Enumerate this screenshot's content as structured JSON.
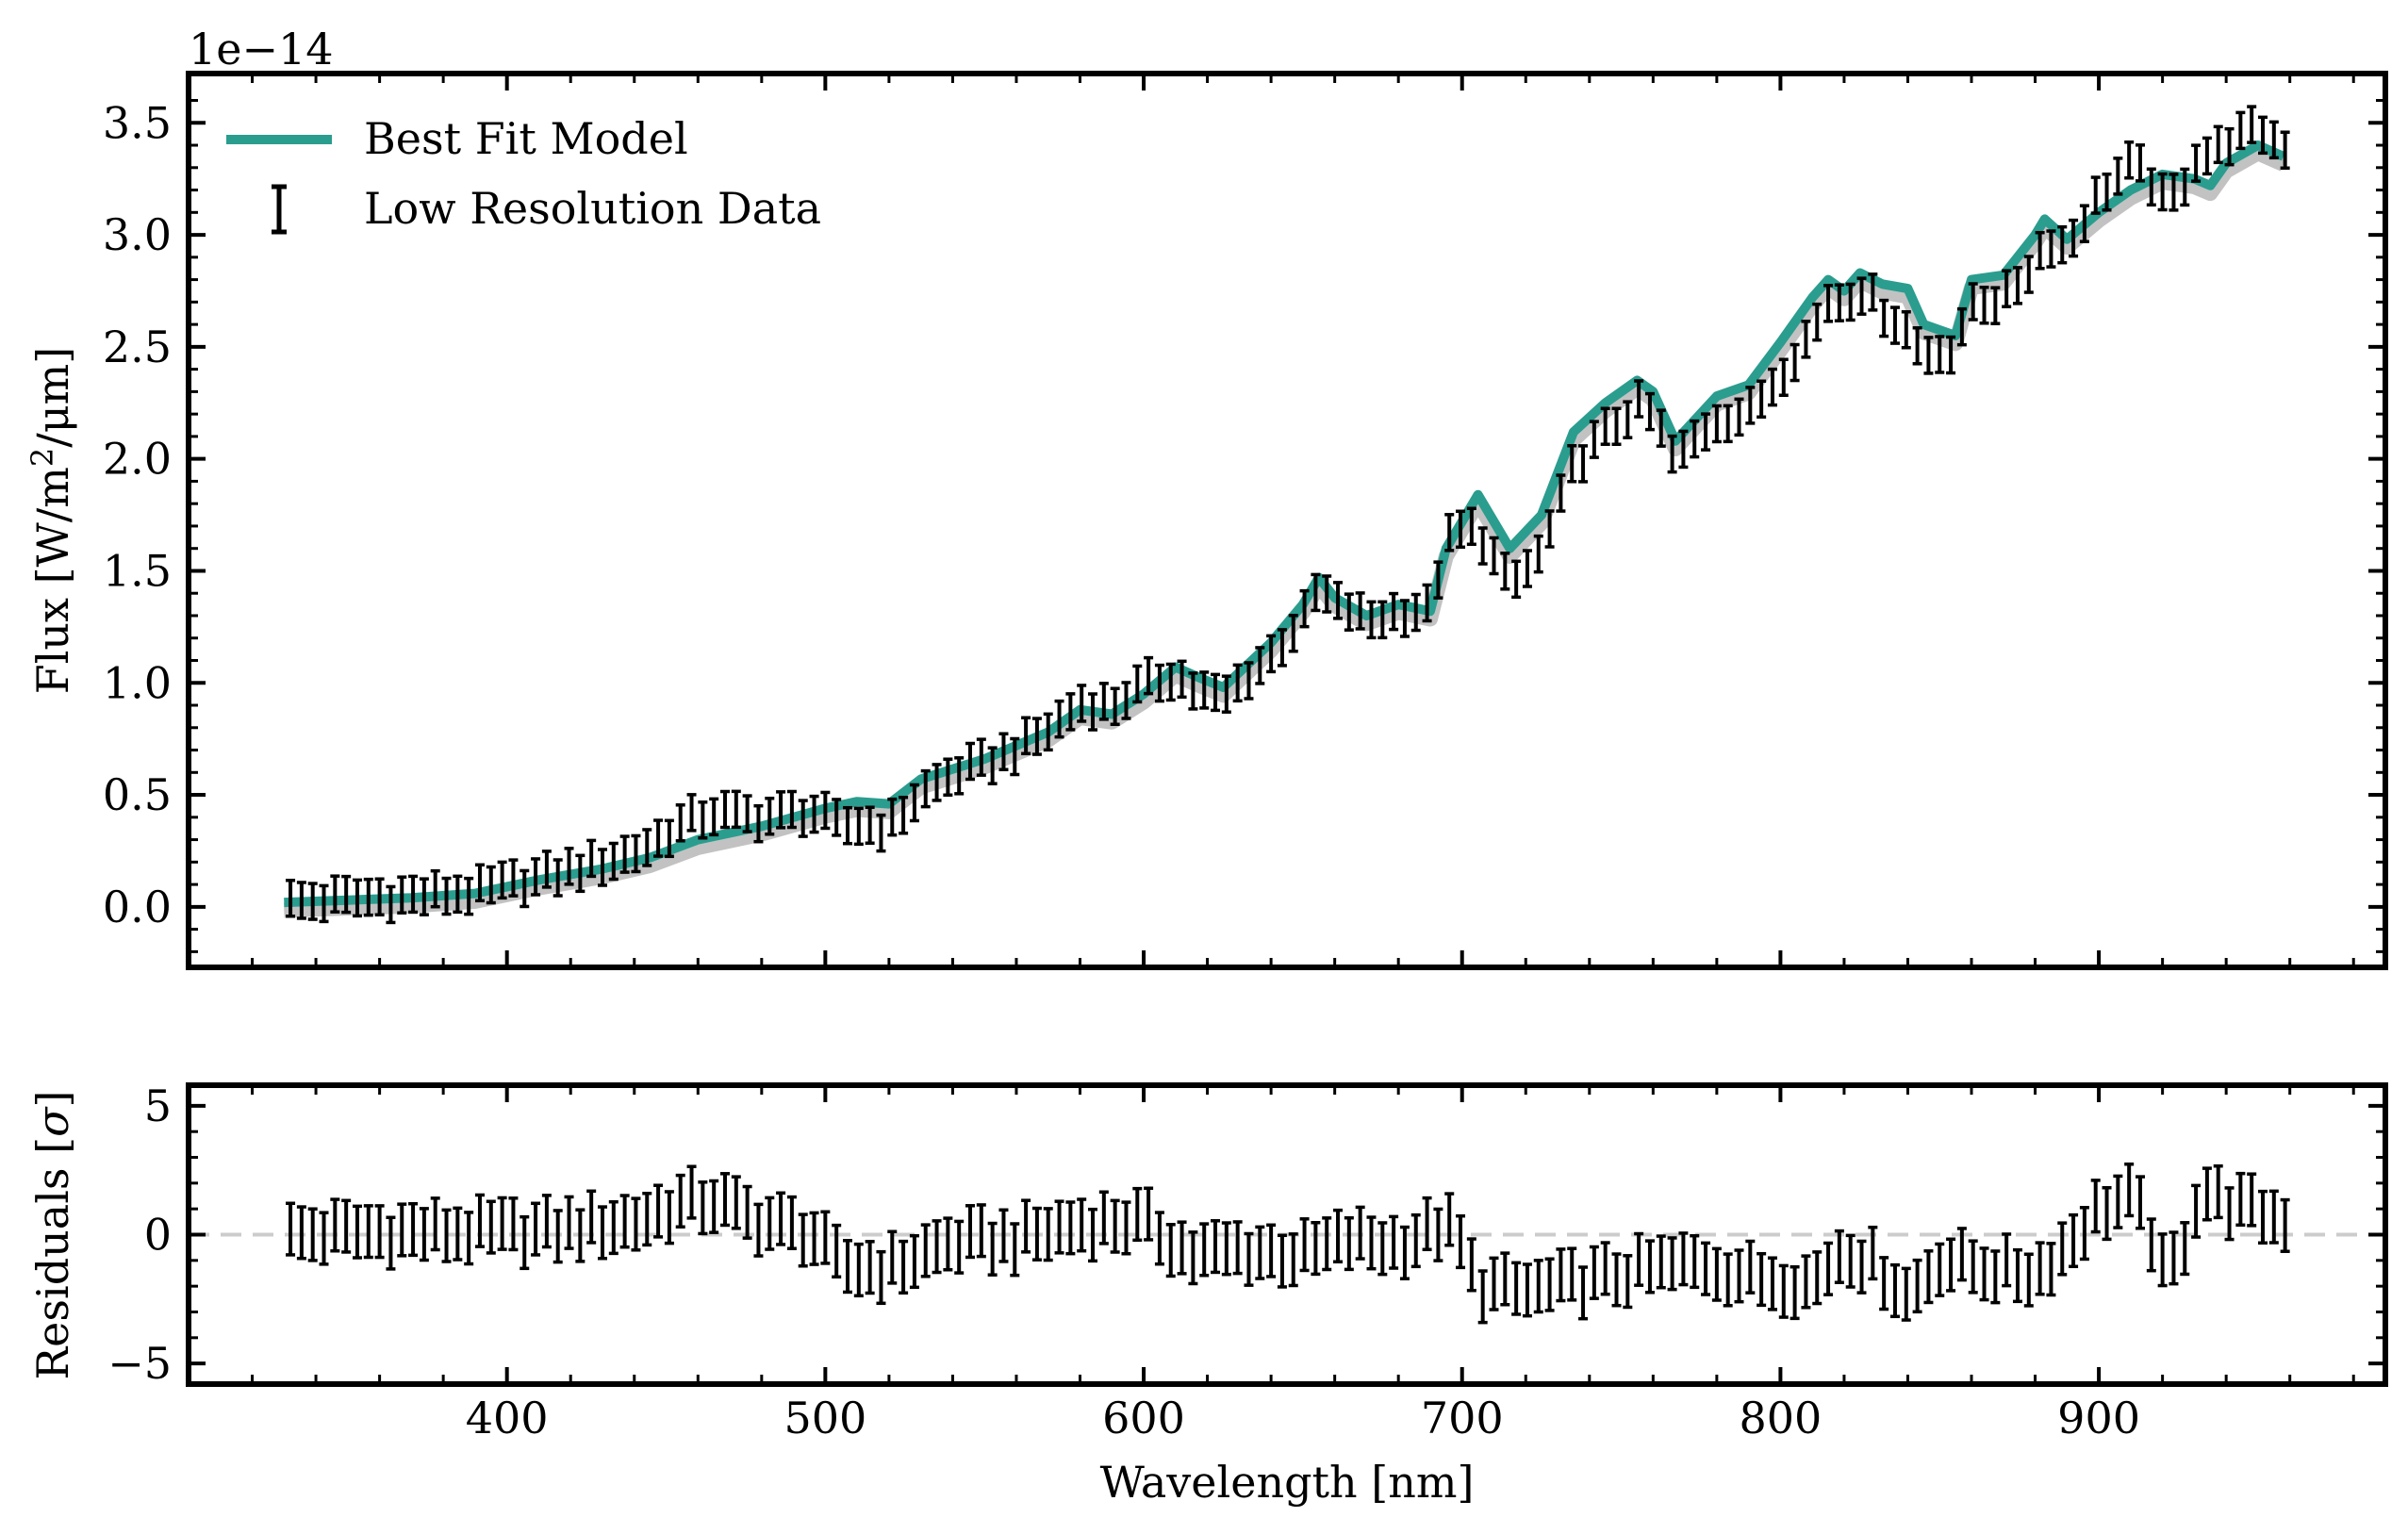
{
  "chart_data": [
    {
      "type": "line",
      "panel": "spectrum",
      "ylabel": "Flux [W/m²/μm]",
      "ylabel_parts": {
        "prefix": "Flux [W/m",
        "sup": "2",
        "suffix": "/μm]"
      },
      "offset_text": "1e−14",
      "xlim": [
        300,
        990
      ],
      "ylim": [
        -0.27,
        3.72
      ],
      "yticks": [
        0.0,
        0.5,
        1.0,
        1.5,
        2.0,
        2.5,
        3.0,
        3.5
      ],
      "ytick_labels": [
        "0.0",
        "0.5",
        "1.0",
        "1.5",
        "2.0",
        "2.5",
        "3.0",
        "3.5"
      ],
      "legend_position": "upper-left",
      "legend": [
        {
          "label": "Best Fit Model",
          "kind": "line",
          "color": "#2a9d8f"
        },
        {
          "label": "Low Resolution Data",
          "kind": "errorbar",
          "color": "#000000"
        }
      ],
      "series": [
        {
          "name": "Best Fit Model",
          "color": "#2a9d8f",
          "x": [
            330,
            350,
            370,
            390,
            410,
            430,
            445,
            460,
            480,
            500,
            510,
            520,
            530,
            550,
            570,
            580,
            590,
            600,
            610,
            618,
            625,
            640,
            650,
            655,
            660,
            670,
            680,
            690,
            695,
            705,
            715,
            725,
            735,
            745,
            755,
            760,
            767,
            780,
            790,
            800,
            810,
            815,
            820,
            825,
            832,
            840,
            845,
            855,
            860,
            870,
            880,
            883,
            890,
            900,
            910,
            920,
            930,
            935,
            940,
            950,
            958
          ],
          "y": [
            0.02,
            0.03,
            0.04,
            0.06,
            0.12,
            0.17,
            0.22,
            0.3,
            0.36,
            0.44,
            0.47,
            0.46,
            0.57,
            0.66,
            0.78,
            0.88,
            0.86,
            0.95,
            1.07,
            1.02,
            0.98,
            1.18,
            1.35,
            1.47,
            1.38,
            1.3,
            1.35,
            1.32,
            1.6,
            1.84,
            1.6,
            1.75,
            2.12,
            2.25,
            2.35,
            2.3,
            2.08,
            2.28,
            2.33,
            2.52,
            2.72,
            2.8,
            2.75,
            2.83,
            2.78,
            2.76,
            2.6,
            2.55,
            2.8,
            2.82,
            3.0,
            3.07,
            2.98,
            3.1,
            3.2,
            3.27,
            3.25,
            3.22,
            3.32,
            3.4,
            3.35
          ]
        },
        {
          "name": "Low Resolution Data",
          "kind": "errorbar",
          "x_start": 332,
          "x_step": 3.5,
          "count": 180,
          "error": 0.08
        }
      ]
    },
    {
      "type": "scatter",
      "panel": "residuals",
      "ylabel": "Residuals [σ]",
      "ylabel_parts": {
        "prefix": "Residuals [",
        "sym": "σ",
        "suffix": "]"
      },
      "xlabel": "Wavelength [nm]",
      "xlim": [
        300,
        990
      ],
      "ylim": [
        -5.8,
        5.8
      ],
      "yticks": [
        -5,
        0,
        5
      ],
      "ytick_labels": [
        "−5",
        "0",
        "5"
      ],
      "xticks": [
        400,
        500,
        600,
        700,
        800,
        900
      ],
      "xtick_labels": [
        "400",
        "500",
        "600",
        "700",
        "800",
        "900"
      ],
      "zero_line_color": "#cccccc",
      "error": 1.0,
      "trend_x": [
        332,
        350,
        380,
        410,
        440,
        455,
        465,
        480,
        495,
        505,
        520,
        540,
        560,
        580,
        595,
        600,
        615,
        630,
        650,
        665,
        680,
        695,
        700,
        705,
        720,
        740,
        760,
        775,
        790,
        810,
        820,
        830,
        840,
        850,
        870,
        880,
        890,
        900,
        910,
        915,
        920,
        925,
        932,
        940,
        950,
        958
      ],
      "trend_y": [
        0.0,
        0.1,
        0.1,
        0.1,
        0.5,
        1.2,
        1.3,
        0.5,
        0.1,
        -1.2,
        -1.3,
        -0.3,
        -0.2,
        0.4,
        0.5,
        0.5,
        -0.8,
        -0.6,
        -0.8,
        -0.2,
        -0.4,
        0.4,
        -0.5,
        -2.0,
        -2.2,
        -1.8,
        -1.3,
        -1.1,
        -1.6,
        -1.9,
        -0.5,
        -1.2,
        -2.4,
        -1.0,
        -1.4,
        -1.5,
        -0.4,
        1.0,
        1.4,
        0.5,
        -1.4,
        -1.0,
        1.8,
        1.2,
        0.9,
        0.6
      ]
    }
  ]
}
